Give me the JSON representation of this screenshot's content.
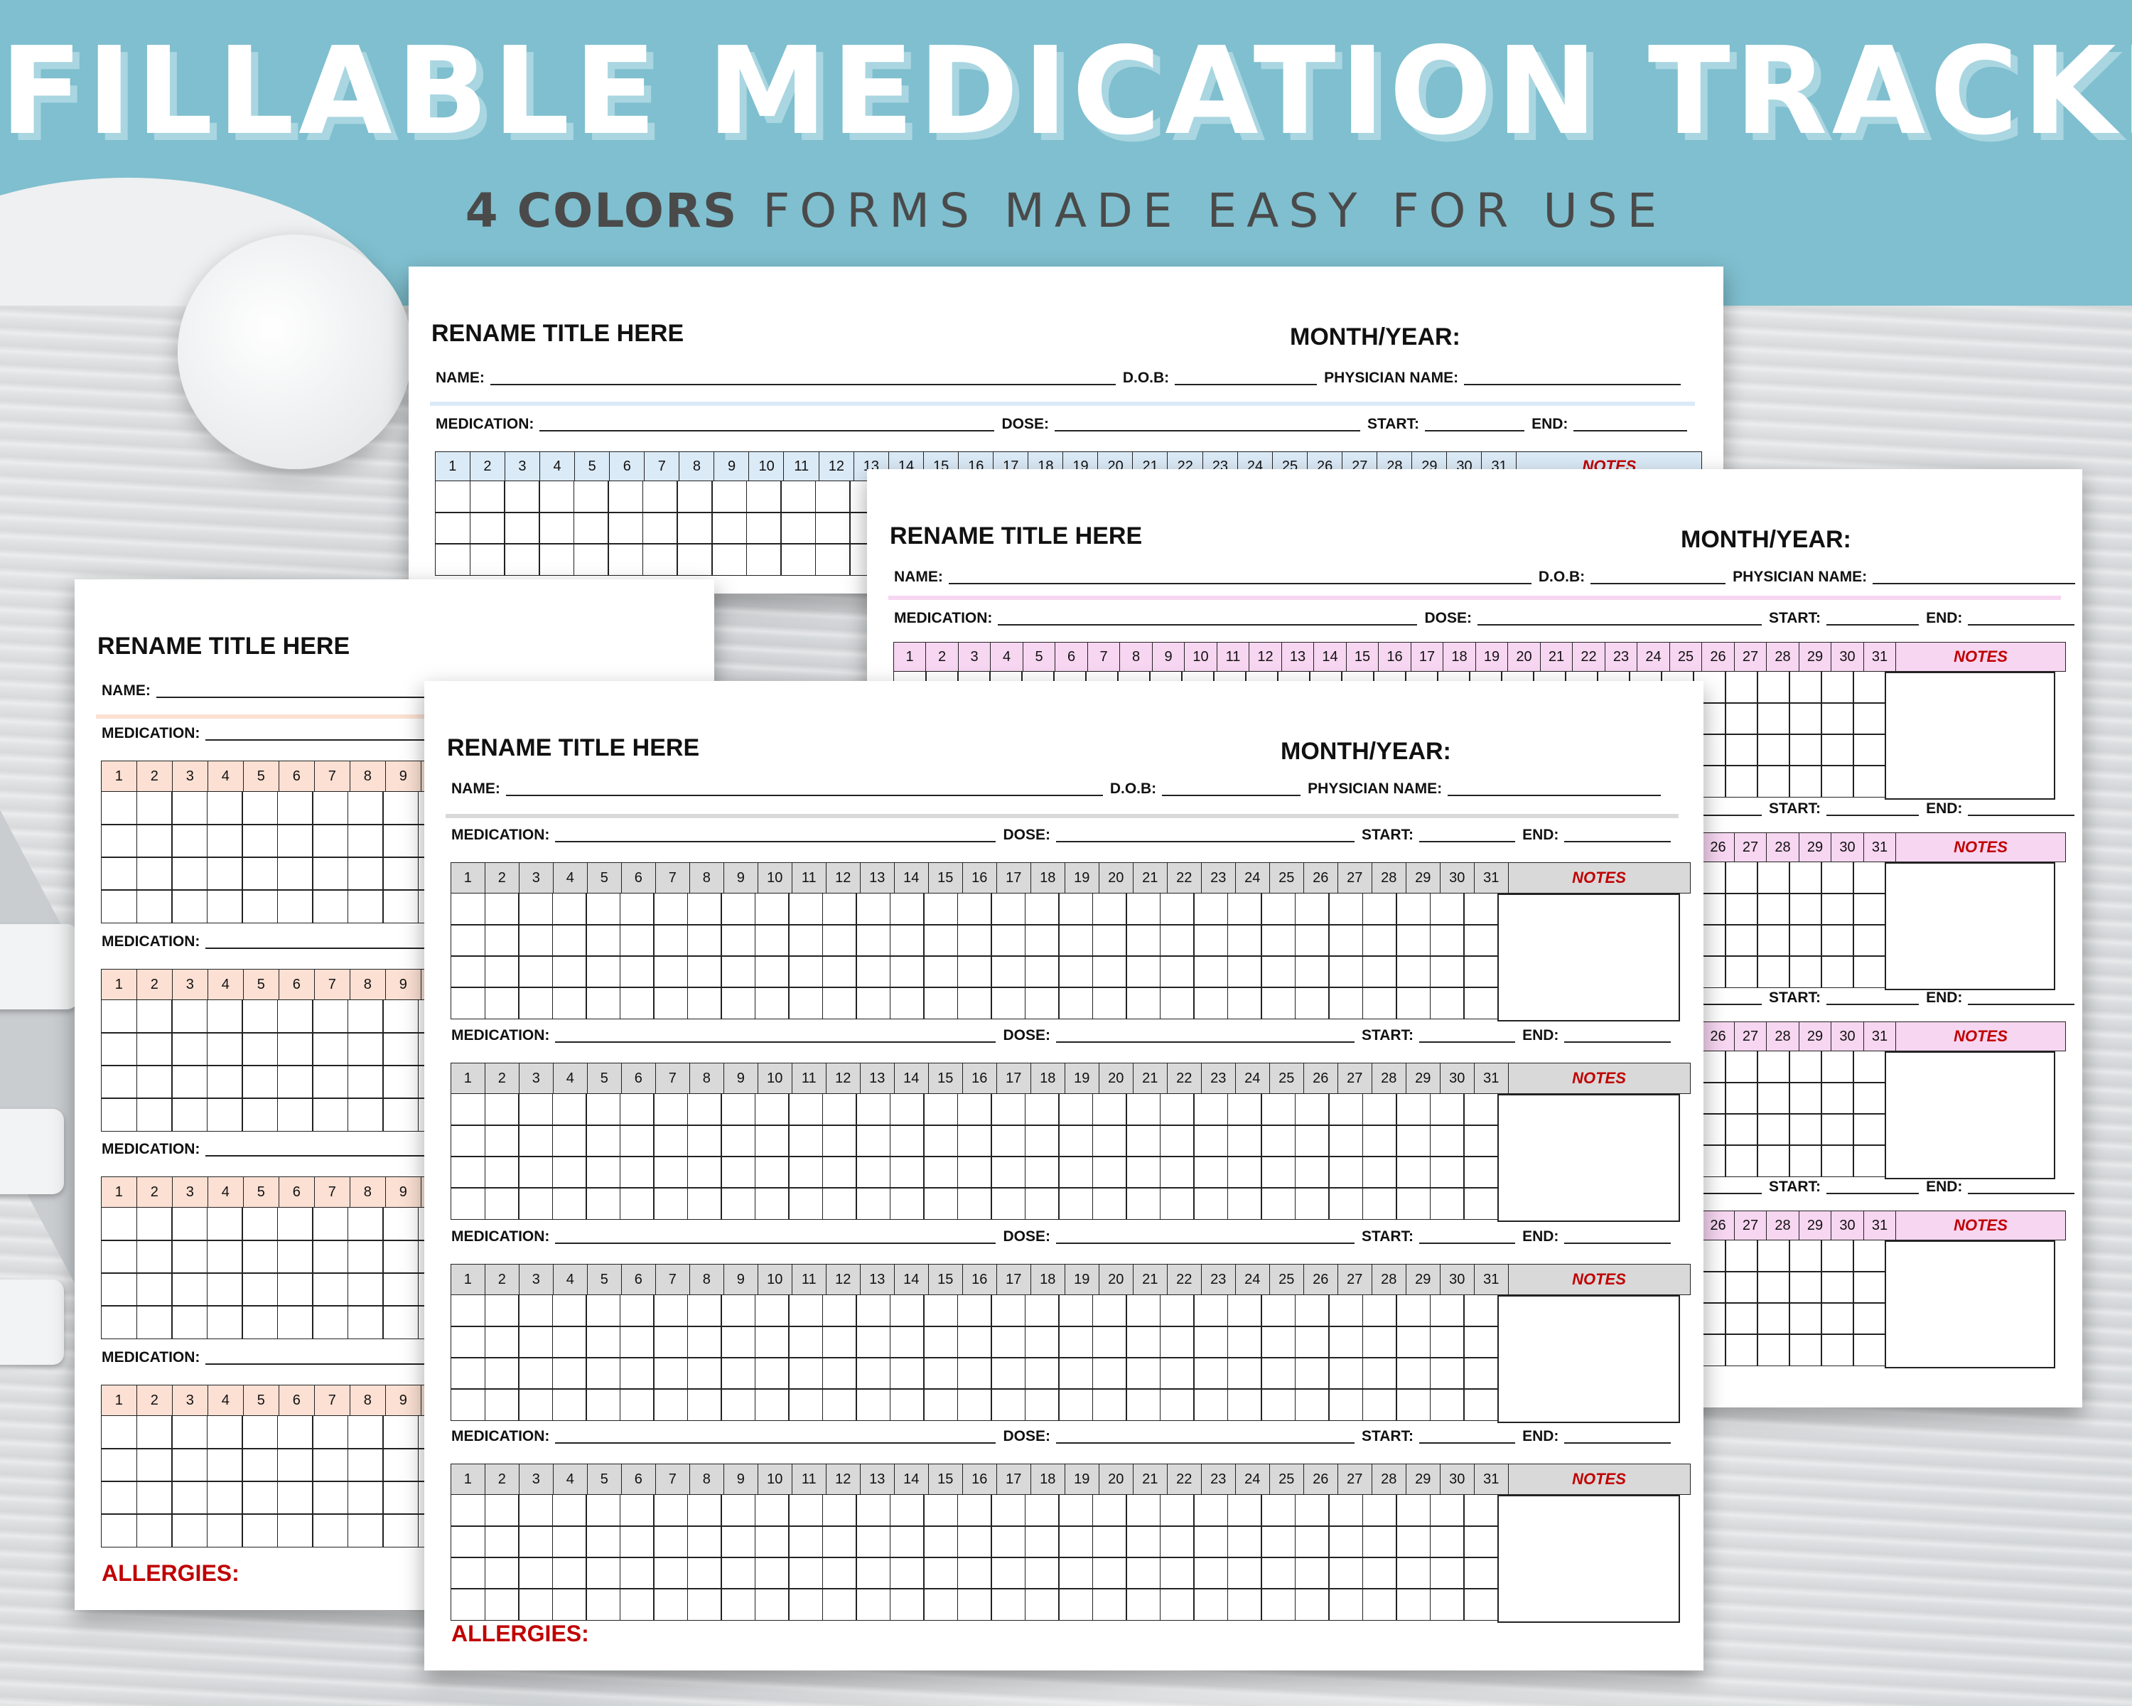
{
  "banner": {
    "title": "FILLABLE MEDICATION TRACKER",
    "subtitle_bold": "4 COLORS",
    "subtitle_rest": "FORMS MADE EASY FOR USE"
  },
  "form": {
    "title": "RENAME TITLE HERE",
    "month_label": "MONTH/YEAR:",
    "name_label": "NAME:",
    "dob_label": "D.O.B:",
    "physician_label": "PHYSICIAN NAME:",
    "medication_label": "MEDICATION:",
    "dose_label": "DOSE:",
    "start_label": "START:",
    "end_label": "END:",
    "notes_label": "NOTES",
    "allergies_label": "ALLERGIES:",
    "days": [
      "1",
      "2",
      "3",
      "4",
      "5",
      "6",
      "7",
      "8",
      "9",
      "10",
      "11",
      "12",
      "13",
      "14",
      "15",
      "16",
      "17",
      "18",
      "19",
      "20",
      "21",
      "22",
      "23",
      "24",
      "25",
      "26",
      "27",
      "28",
      "29",
      "30",
      "31"
    ]
  },
  "colors": {
    "blue": "#dbeaf7",
    "pink": "#f7d6f1",
    "peach": "#fbe0d3",
    "gray": "#d9d9d9"
  }
}
